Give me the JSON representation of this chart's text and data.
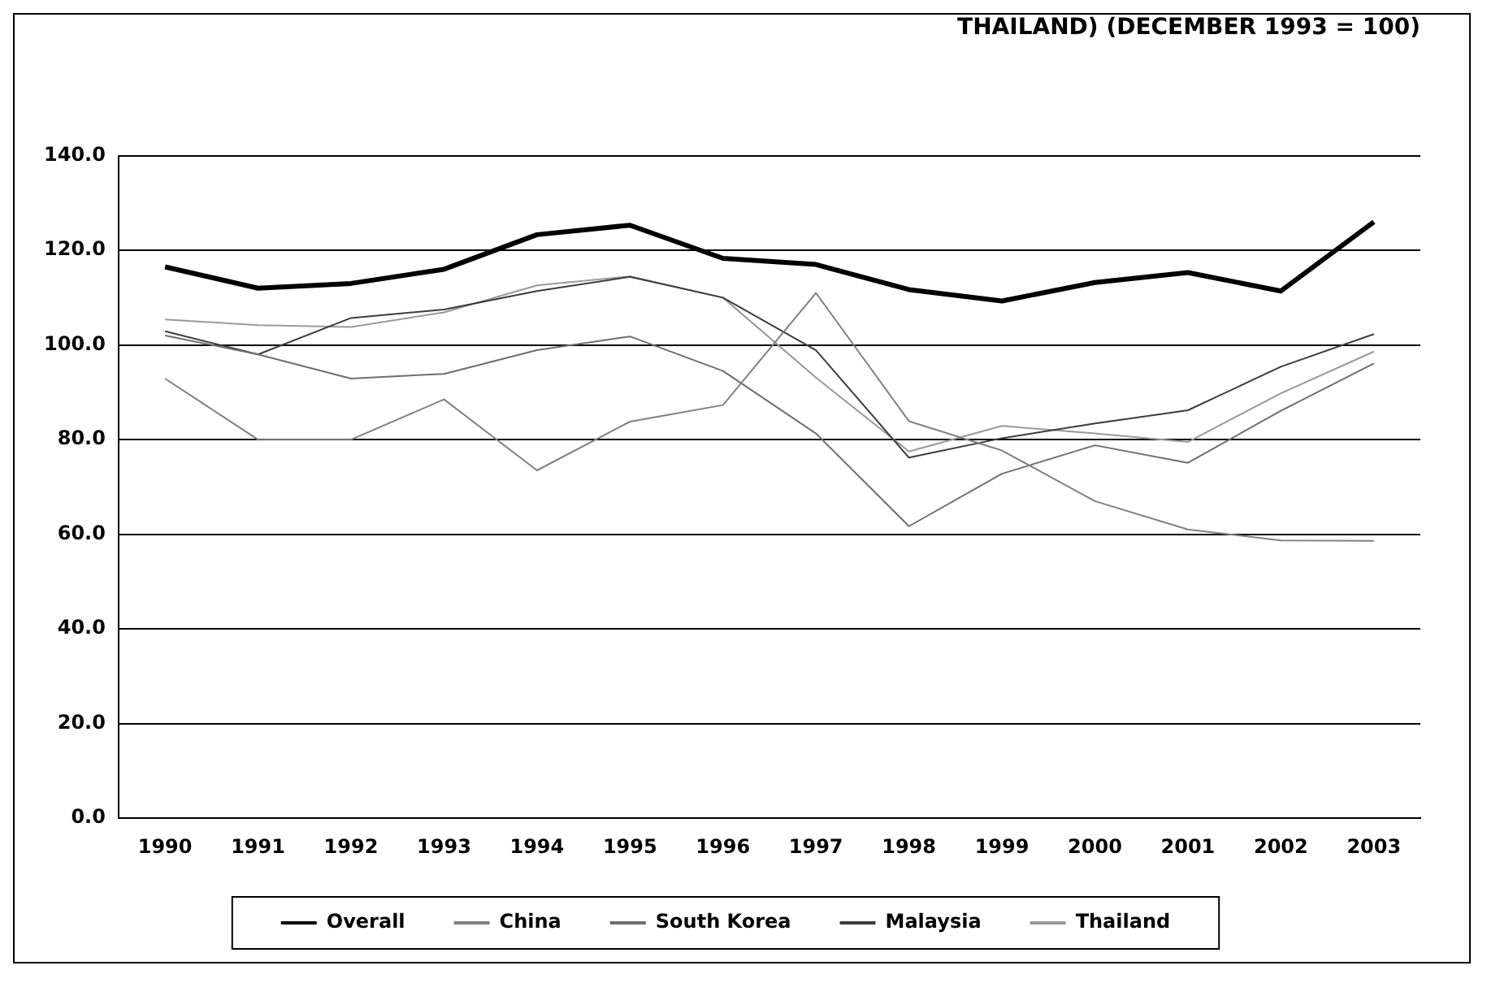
{
  "chart_data": {
    "type": "line",
    "title": "THAILAND) (DECEMBER 1993 = 100)",
    "categories": [
      "1990",
      "1991",
      "1992",
      "1993",
      "1994",
      "1995",
      "1996",
      "1997",
      "1998",
      "1999",
      "2000",
      "2001",
      "2002",
      "2003"
    ],
    "series": [
      {
        "name": "Overall",
        "color": "#000000",
        "values": [
          116.5,
          112,
          113,
          116,
          123.3,
          125.3,
          118.3,
          117,
          111.7,
          109.3,
          113.2,
          115.3,
          111.4,
          126
        ]
      },
      {
        "name": "China",
        "color": "#808080",
        "values": [
          92.9,
          80,
          80,
          88.5,
          73.5,
          83.8,
          87.3,
          111,
          83.9,
          77.7,
          67,
          61,
          58.7,
          58.6
        ]
      },
      {
        "name": "South Korea",
        "color": "#6e6e6e",
        "values": [
          102,
          98,
          92.9,
          93.9,
          98.9,
          101.8,
          94.5,
          81.3,
          61.7,
          72.8,
          78.8,
          75.1,
          86.1,
          96.1
        ]
      },
      {
        "name": "Malaysia",
        "color": "#3c3c3c",
        "values": [
          102.9,
          98,
          105.7,
          107.5,
          111.4,
          114.4,
          110,
          98.9,
          76.2,
          80.3,
          83.4,
          86.2,
          95.4,
          102.3
        ]
      },
      {
        "name": "Thailand",
        "color": "#999999",
        "values": [
          105.4,
          104.2,
          103.8,
          106.9,
          112.6,
          114.5,
          110,
          93.1,
          77.5,
          82.9,
          81.3,
          79.5,
          89.8,
          98.6
        ]
      }
    ],
    "ylim": [
      0,
      140
    ],
    "yticks": [
      {
        "value": 0,
        "label": "0.0"
      },
      {
        "value": 20,
        "label": "20.0"
      },
      {
        "value": 40,
        "label": "40.0"
      },
      {
        "value": 60,
        "label": "60.0"
      },
      {
        "value": 80,
        "label": "80.0"
      },
      {
        "value": 100,
        "label": "100.0"
      },
      {
        "value": 120,
        "label": "120.0"
      },
      {
        "value": 140,
        "label": "140.0"
      }
    ],
    "grid": "y",
    "legend": "bottom",
    "marker": "none",
    "line_style": "solid"
  }
}
